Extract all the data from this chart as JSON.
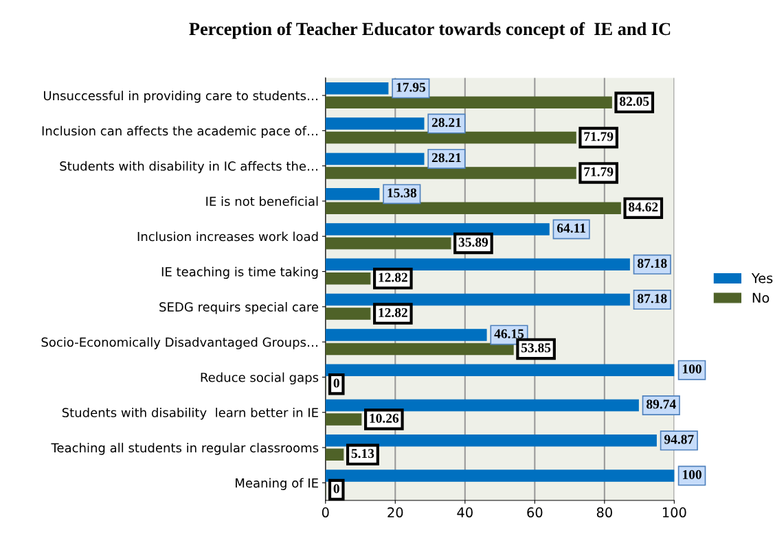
{
  "chart_data": {
    "type": "bar",
    "orientation": "horizontal",
    "title": "Perception of Teacher Educator towards concept of  IE and IC",
    "categories": [
      "Unsuccessful in providing care to students…",
      "Inclusion can affects the academic pace of…",
      "Students with disability in IC affects the…",
      "IE is not beneficial",
      "Inclusion increases work load",
      "IE teaching is time taking",
      "SEDG requirs special care",
      "Socio-Economically Disadvantaged Groups…",
      "Reduce social gaps",
      "Students with disability  learn better in IE",
      "Teaching all students in regular classrooms",
      "Meaning of IE"
    ],
    "series": [
      {
        "name": "Yes",
        "color": "#0070c0",
        "values": [
          17.95,
          28.21,
          28.21,
          15.38,
          64.11,
          87.18,
          87.18,
          46.15,
          100,
          89.74,
          94.87,
          100
        ]
      },
      {
        "name": "No",
        "color": "#4f6228",
        "values": [
          82.05,
          71.79,
          71.79,
          84.62,
          35.89,
          12.82,
          12.82,
          53.85,
          0,
          10.26,
          5.13,
          0
        ]
      }
    ],
    "xlim": [
      0,
      100
    ],
    "xticks": [
      0,
      20,
      40,
      60,
      80,
      100
    ],
    "grid": "x",
    "legend": "right",
    "data_labels": true
  }
}
